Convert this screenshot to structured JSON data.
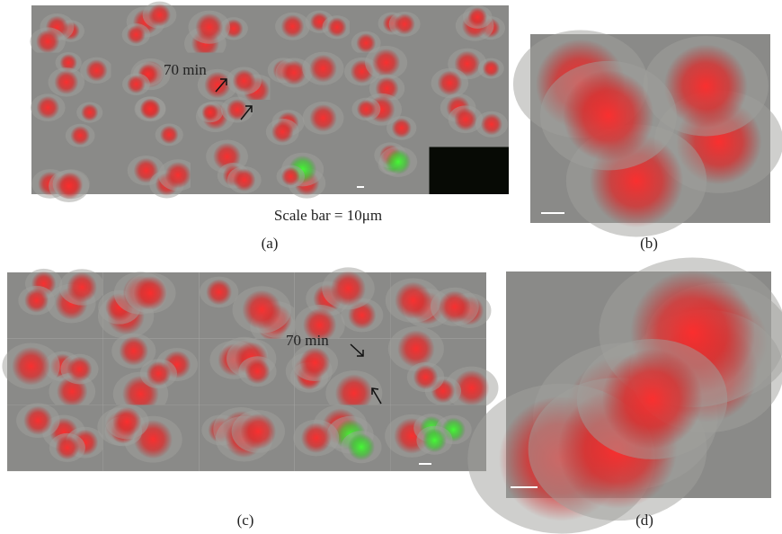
{
  "panels": [
    {
      "label": "(a)",
      "annotation": "70 min",
      "caption": "Scale bar = 10μm"
    },
    {
      "label": "(b)"
    },
    {
      "label": "(c)",
      "annotation": "70 min"
    },
    {
      "label": "(d)"
    }
  ]
}
